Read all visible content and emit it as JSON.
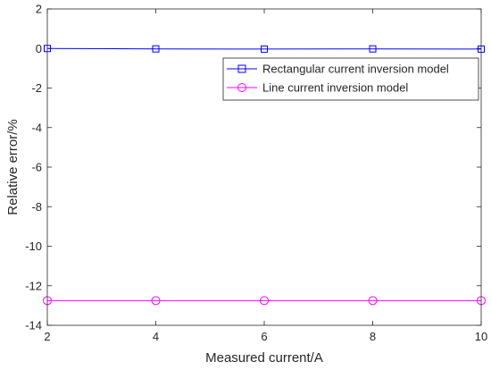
{
  "chart_data": {
    "type": "line",
    "xlabel": "Measured current/A",
    "ylabel": "Relative error/%",
    "xlim": [
      2,
      10
    ],
    "ylim": [
      -14,
      2
    ],
    "xticks": [
      2,
      4,
      6,
      8,
      10
    ],
    "yticks": [
      2,
      0,
      -2,
      -4,
      -6,
      -8,
      -10,
      -12,
      -14
    ],
    "x": [
      2,
      4,
      6,
      8,
      10
    ],
    "grid": false,
    "legend_position": "top-right",
    "series": [
      {
        "name": "Rectangular current inversion model",
        "values": [
          0.0,
          -0.02,
          -0.03,
          -0.02,
          -0.03
        ],
        "color": "#0000ff",
        "marker": "square"
      },
      {
        "name": "Line current inversion model",
        "values": [
          -12.75,
          -12.75,
          -12.75,
          -12.75,
          -12.75
        ],
        "color": "#ff00ff",
        "marker": "circle"
      }
    ]
  }
}
